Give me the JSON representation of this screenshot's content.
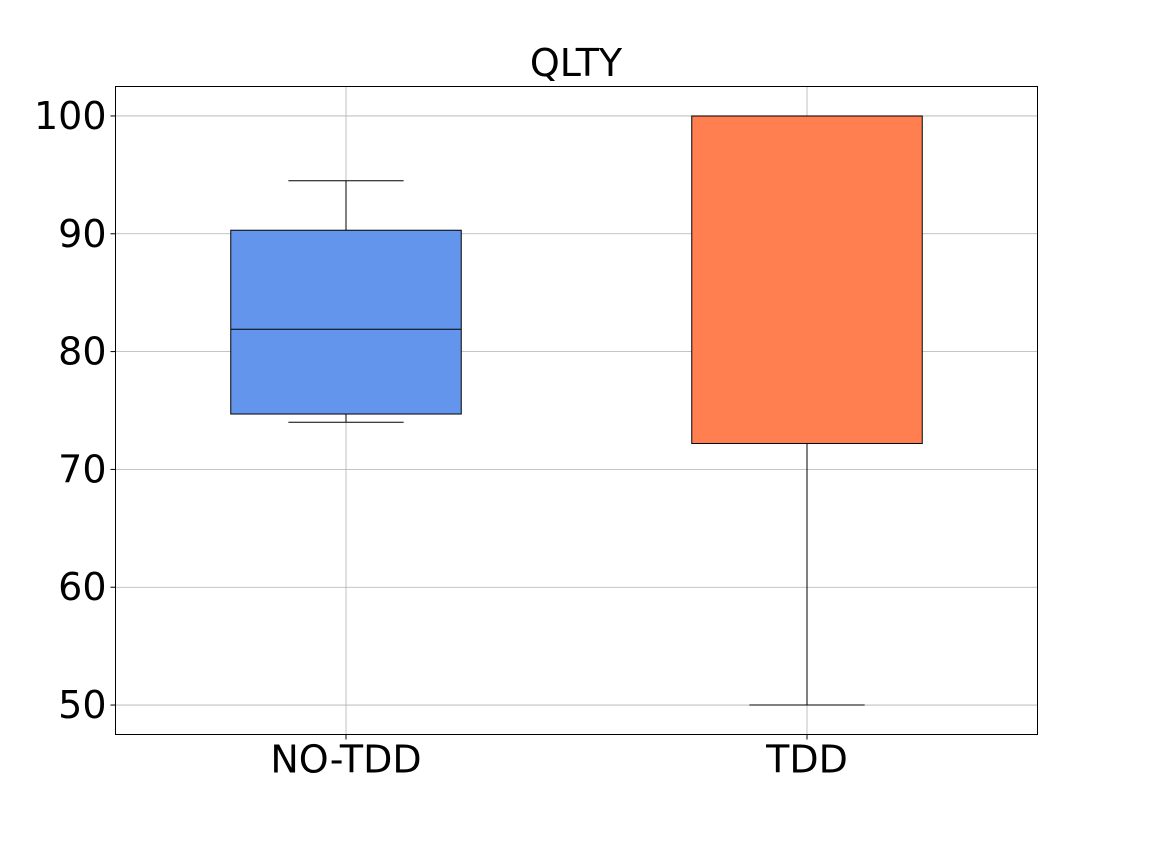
{
  "chart_data": {
    "type": "box",
    "title": "QLTY",
    "xlabel": "",
    "ylabel": "",
    "ylim": [
      47.5,
      102.5
    ],
    "yticks": [
      50,
      60,
      70,
      80,
      90,
      100
    ],
    "grid": true,
    "categories": [
      "NO-TDD",
      "TDD"
    ],
    "boxes": [
      {
        "label": "NO-TDD",
        "whisker_low": 74,
        "q1": 74.7,
        "median": 81.9,
        "q3": 90.3,
        "whisker_high": 94.5,
        "color": "#6495ED"
      },
      {
        "label": "TDD",
        "whisker_low": 50,
        "q1": 72.2,
        "median": 100,
        "q3": 100,
        "whisker_high": 100,
        "color": "#FF7F50"
      }
    ],
    "colors": {
      "frame": "#000000",
      "grid": "#b0b0b0",
      "box_edge": "#000000"
    }
  }
}
